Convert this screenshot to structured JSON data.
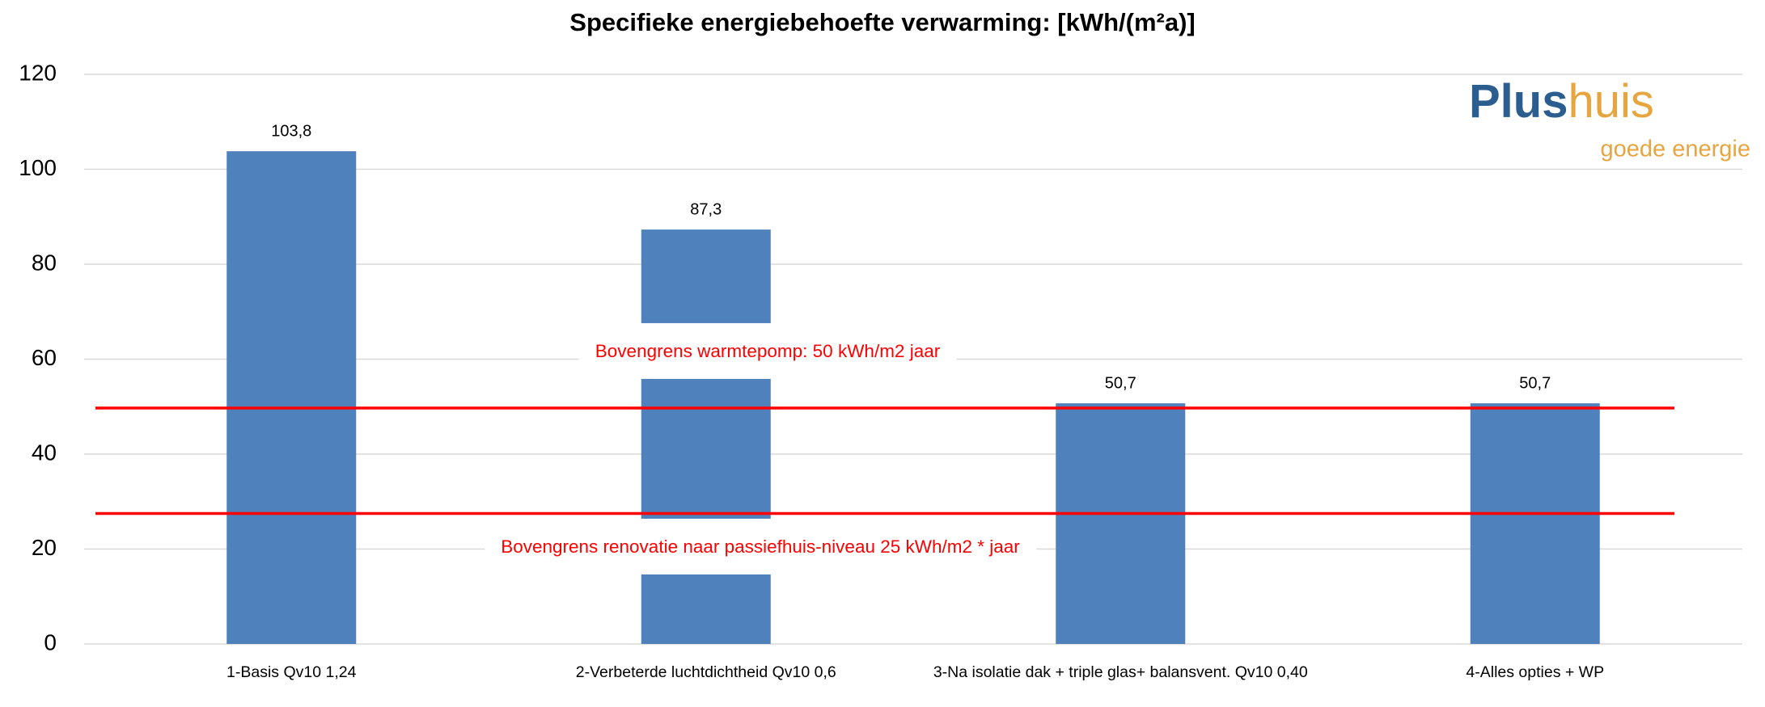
{
  "chart_data": {
    "type": "bar",
    "title": "Specifieke energiebehoefte verwarming: [kWh/(m²a)]",
    "categories": [
      "1-Basis Qv10 1,24",
      "2-Verbeterde luchtdichtheid Qv10 0,6",
      "3-Na isolatie dak + triple glas+ balansvent. Qv10 0,40",
      "4-Alles opties + WP"
    ],
    "values": [
      103.8,
      87.3,
      50.7,
      50.7
    ],
    "value_labels": [
      "103,8",
      "87,3",
      "50,7",
      "50,7"
    ],
    "color": "#4f81bd",
    "ylim": [
      0,
      120
    ],
    "yticks": [
      0,
      20,
      40,
      60,
      80,
      100,
      120
    ],
    "grid": true,
    "reference_lines": [
      {
        "value": 49.7,
        "label": "Bovengrens warmtepomp: 50 kWh/m2  jaar",
        "color": "#ff0000"
      },
      {
        "value": 27.5,
        "label": "Bovengrens renovatie naar passiefhuis-niveau 25 kWh/m2 * jaar",
        "color": "#ff0000"
      }
    ],
    "logo": {
      "part1": "Plus",
      "part2": "huis",
      "tagline": "goede energie"
    }
  }
}
